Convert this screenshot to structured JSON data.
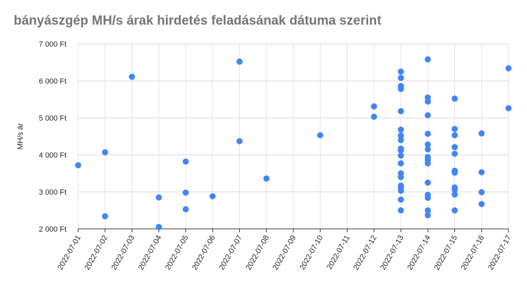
{
  "chart_data": {
    "type": "scatter",
    "title": "bányászgép MH/s árak hirdetés feladásának dátuma szerint",
    "xlabel": "",
    "ylabel": "MH/s ár",
    "categories": [
      "2022-07-01",
      "2022-07-02",
      "2022-07-03",
      "2022-07-04",
      "2022-07-05",
      "2022-07-06",
      "2022-07-07",
      "2022-07-08",
      "2022-07-09",
      "2022-07-10",
      "2022-07-11",
      "2022-07-12",
      "2022-07-13",
      "2022-07-14",
      "2022-07-15",
      "2022-07-16",
      "2022-07-17"
    ],
    "ylim": [
      2000,
      7000
    ],
    "yticks": [
      2000,
      3000,
      4000,
      5000,
      6000,
      7000
    ],
    "ytick_labels": [
      "2 000 Ft",
      "3 000 Ft",
      "4 000 Ft",
      "5 000 Ft",
      "6 000 Ft",
      "7 000 Ft"
    ],
    "grid": true,
    "point_color": "#4285f4",
    "points": [
      {
        "x": "2022-07-01",
        "y": 3720
      },
      {
        "x": "2022-07-02",
        "y": 4070
      },
      {
        "x": "2022-07-02",
        "y": 2340
      },
      {
        "x": "2022-07-03",
        "y": 6110
      },
      {
        "x": "2022-07-04",
        "y": 2850
      },
      {
        "x": "2022-07-04",
        "y": 2050
      },
      {
        "x": "2022-07-05",
        "y": 3820
      },
      {
        "x": "2022-07-05",
        "y": 2980
      },
      {
        "x": "2022-07-05",
        "y": 2530
      },
      {
        "x": "2022-07-06",
        "y": 2880
      },
      {
        "x": "2022-07-07",
        "y": 6520
      },
      {
        "x": "2022-07-07",
        "y": 4370
      },
      {
        "x": "2022-07-08",
        "y": 3360
      },
      {
        "x": "2022-07-10",
        "y": 4530
      },
      {
        "x": "2022-07-12",
        "y": 5310
      },
      {
        "x": "2022-07-12",
        "y": 5030
      },
      {
        "x": "2022-07-13",
        "y": 6250
      },
      {
        "x": "2022-07-13",
        "y": 6080
      },
      {
        "x": "2022-07-13",
        "y": 5860
      },
      {
        "x": "2022-07-13",
        "y": 5780
      },
      {
        "x": "2022-07-13",
        "y": 5180
      },
      {
        "x": "2022-07-13",
        "y": 4680
      },
      {
        "x": "2022-07-13",
        "y": 4520
      },
      {
        "x": "2022-07-13",
        "y": 4400
      },
      {
        "x": "2022-07-13",
        "y": 4170
      },
      {
        "x": "2022-07-13",
        "y": 4120
      },
      {
        "x": "2022-07-13",
        "y": 3980
      },
      {
        "x": "2022-07-13",
        "y": 3770
      },
      {
        "x": "2022-07-13",
        "y": 3500
      },
      {
        "x": "2022-07-13",
        "y": 3400
      },
      {
        "x": "2022-07-13",
        "y": 3170
      },
      {
        "x": "2022-07-13",
        "y": 3120
      },
      {
        "x": "2022-07-13",
        "y": 3030
      },
      {
        "x": "2022-07-13",
        "y": 2790
      },
      {
        "x": "2022-07-13",
        "y": 2500
      },
      {
        "x": "2022-07-14",
        "y": 6580
      },
      {
        "x": "2022-07-14",
        "y": 5550
      },
      {
        "x": "2022-07-14",
        "y": 5440
      },
      {
        "x": "2022-07-14",
        "y": 5070
      },
      {
        "x": "2022-07-14",
        "y": 4570
      },
      {
        "x": "2022-07-14",
        "y": 4280
      },
      {
        "x": "2022-07-14",
        "y": 4150
      },
      {
        "x": "2022-07-14",
        "y": 3940
      },
      {
        "x": "2022-07-14",
        "y": 3860
      },
      {
        "x": "2022-07-14",
        "y": 3770
      },
      {
        "x": "2022-07-14",
        "y": 3250
      },
      {
        "x": "2022-07-14",
        "y": 2920
      },
      {
        "x": "2022-07-14",
        "y": 2840
      },
      {
        "x": "2022-07-14",
        "y": 2500
      },
      {
        "x": "2022-07-14",
        "y": 2370
      },
      {
        "x": "2022-07-15",
        "y": 5520
      },
      {
        "x": "2022-07-15",
        "y": 4700
      },
      {
        "x": "2022-07-15",
        "y": 4530
      },
      {
        "x": "2022-07-15",
        "y": 4210
      },
      {
        "x": "2022-07-15",
        "y": 4030
      },
      {
        "x": "2022-07-15",
        "y": 3570
      },
      {
        "x": "2022-07-15",
        "y": 3520
      },
      {
        "x": "2022-07-15",
        "y": 3120
      },
      {
        "x": "2022-07-15",
        "y": 3060
      },
      {
        "x": "2022-07-15",
        "y": 2930
      },
      {
        "x": "2022-07-15",
        "y": 2500
      },
      {
        "x": "2022-07-16",
        "y": 4580
      },
      {
        "x": "2022-07-16",
        "y": 3530
      },
      {
        "x": "2022-07-16",
        "y": 2990
      },
      {
        "x": "2022-07-16",
        "y": 2670
      },
      {
        "x": "2022-07-17",
        "y": 6340
      },
      {
        "x": "2022-07-17",
        "y": 5260
      }
    ]
  }
}
